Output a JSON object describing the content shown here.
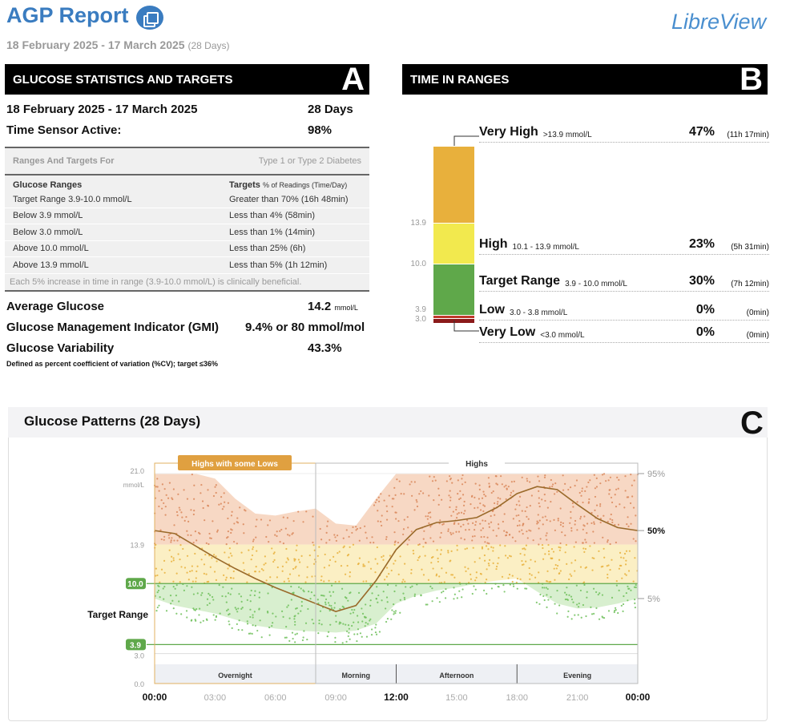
{
  "header": {
    "title": "AGP Report",
    "period": "18 February 2025 - 17 March 2025",
    "days": "(28 Days)",
    "brand": "LibreView"
  },
  "stats": {
    "heading": "GLUCOSE STATISTICS AND TARGETS",
    "letter": "A",
    "period": "18 February 2025 - 17 March 2025",
    "period_value": "28 Days",
    "sensor_label": "Time Sensor Active:",
    "sensor_value": "98%",
    "ranges_for": "Ranges And Targets For",
    "diabetes_type": "Type 1 or Type 2 Diabetes",
    "col_ranges": "Glucose Ranges",
    "col_targets": "Targets",
    "col_targets_sub": "% of Readings (Time/Day)",
    "rows": [
      [
        "Target Range 3.9-10.0 mmol/L",
        "Greater than 70% (16h 48min)"
      ],
      [
        "Below 3.9 mmol/L",
        "Less than 4% (58min)"
      ],
      [
        "Below 3.0 mmol/L",
        "Less than 1% (14min)"
      ],
      [
        "Above 10.0 mmol/L",
        "Less than 25% (6h)"
      ],
      [
        "Above 13.9 mmol/L",
        "Less than 5% (1h 12min)"
      ]
    ],
    "note": "Each 5% increase in time in range (3.9-10.0 mmol/L) is clinically beneficial.",
    "avg_label": "Average Glucose",
    "avg_value": "14.2",
    "avg_unit": "mmol/L",
    "gmi_label": "Glucose Management Indicator (GMI)",
    "gmi_value": "9.4% or 80 mmol/mol",
    "gv_label": "Glucose Variability",
    "gv_value": "43.3%",
    "gv_note": "Defined as percent coefficient of variation (%CV); target ≤36%"
  },
  "tir": {
    "heading": "TIME IN RANGES",
    "letter": "B",
    "axis": [
      "13.9",
      "10.0",
      "3.9",
      "3.0"
    ],
    "items": [
      {
        "label": "Very High",
        "range": ">13.9 mmol/L",
        "pct": "47%",
        "time": "(11h 17min)",
        "value": 47,
        "color": "#e8b03c"
      },
      {
        "label": "High",
        "range": "10.1 - 13.9 mmol/L",
        "pct": "23%",
        "time": "(5h 31min)",
        "value": 23,
        "color": "#f2e94e"
      },
      {
        "label": "Target Range",
        "range": "3.9 - 10.0 mmol/L",
        "pct": "30%",
        "time": "(7h 12min)",
        "value": 30,
        "color": "#5fa84a"
      },
      {
        "label": "Low",
        "range": "3.0 - 3.8 mmol/L",
        "pct": "0%",
        "time": "(0min)",
        "value": 0,
        "color": "#c0392b"
      },
      {
        "label": "Very Low",
        "range": "<3.0 mmol/L",
        "pct": "0%",
        "time": "(0min)",
        "value": 0,
        "color": "#8b1a1a"
      }
    ]
  },
  "patterns": {
    "title": "Glucose Patterns (28 Days)",
    "letter": "C",
    "band_left": "Highs with some Lows",
    "band_right": "Highs",
    "target_label": "Target Range",
    "unit": "mmol/L"
  },
  "chart_data": {
    "type": "line",
    "title": "Glucose Patterns (28 Days)",
    "ylabel": "mmol/L",
    "ylim": [
      0,
      21
    ],
    "y_ticks": [
      "21.0",
      "13.9",
      "10.0",
      "3.9",
      "3.0",
      "0.0"
    ],
    "target_low": 3.9,
    "target_high": 10.0,
    "x_ticks": [
      "00:00",
      "03:00",
      "06:00",
      "09:00",
      "12:00",
      "15:00",
      "18:00",
      "21:00",
      "00:00"
    ],
    "periods": [
      "Overnight",
      "Morning",
      "Afternoon",
      "Evening"
    ],
    "percentile_labels": [
      "95%",
      "50%",
      "5%"
    ],
    "hours": [
      0,
      1,
      2,
      3,
      4,
      5,
      6,
      7,
      8,
      9,
      10,
      11,
      12,
      13,
      14,
      15,
      16,
      17,
      18,
      19,
      20,
      21,
      22,
      23,
      24
    ],
    "p50": [
      15.3,
      15.0,
      13.8,
      12.6,
      11.5,
      10.5,
      9.6,
      8.8,
      8.0,
      7.2,
      7.8,
      10.3,
      13.4,
      15.4,
      16.1,
      16.3,
      16.6,
      17.6,
      19.0,
      19.7,
      19.4,
      17.9,
      16.5,
      15.6,
      15.3
    ],
    "p95": [
      21,
      21,
      21,
      20.5,
      18.5,
      17.0,
      16.8,
      17.2,
      17.5,
      16.0,
      15.8,
      18.5,
      21,
      21,
      21,
      21,
      21,
      21,
      21,
      21,
      21,
      21,
      21,
      21,
      21
    ],
    "p5": [
      8.5,
      7.8,
      7.4,
      7.0,
      6.4,
      5.8,
      5.5,
      5.3,
      5.2,
      5.1,
      5.3,
      6.0,
      8.0,
      8.8,
      9.3,
      9.6,
      10.0,
      10.3,
      10.5,
      9.2,
      8.0,
      7.5,
      7.6,
      8.0,
      8.5
    ]
  }
}
